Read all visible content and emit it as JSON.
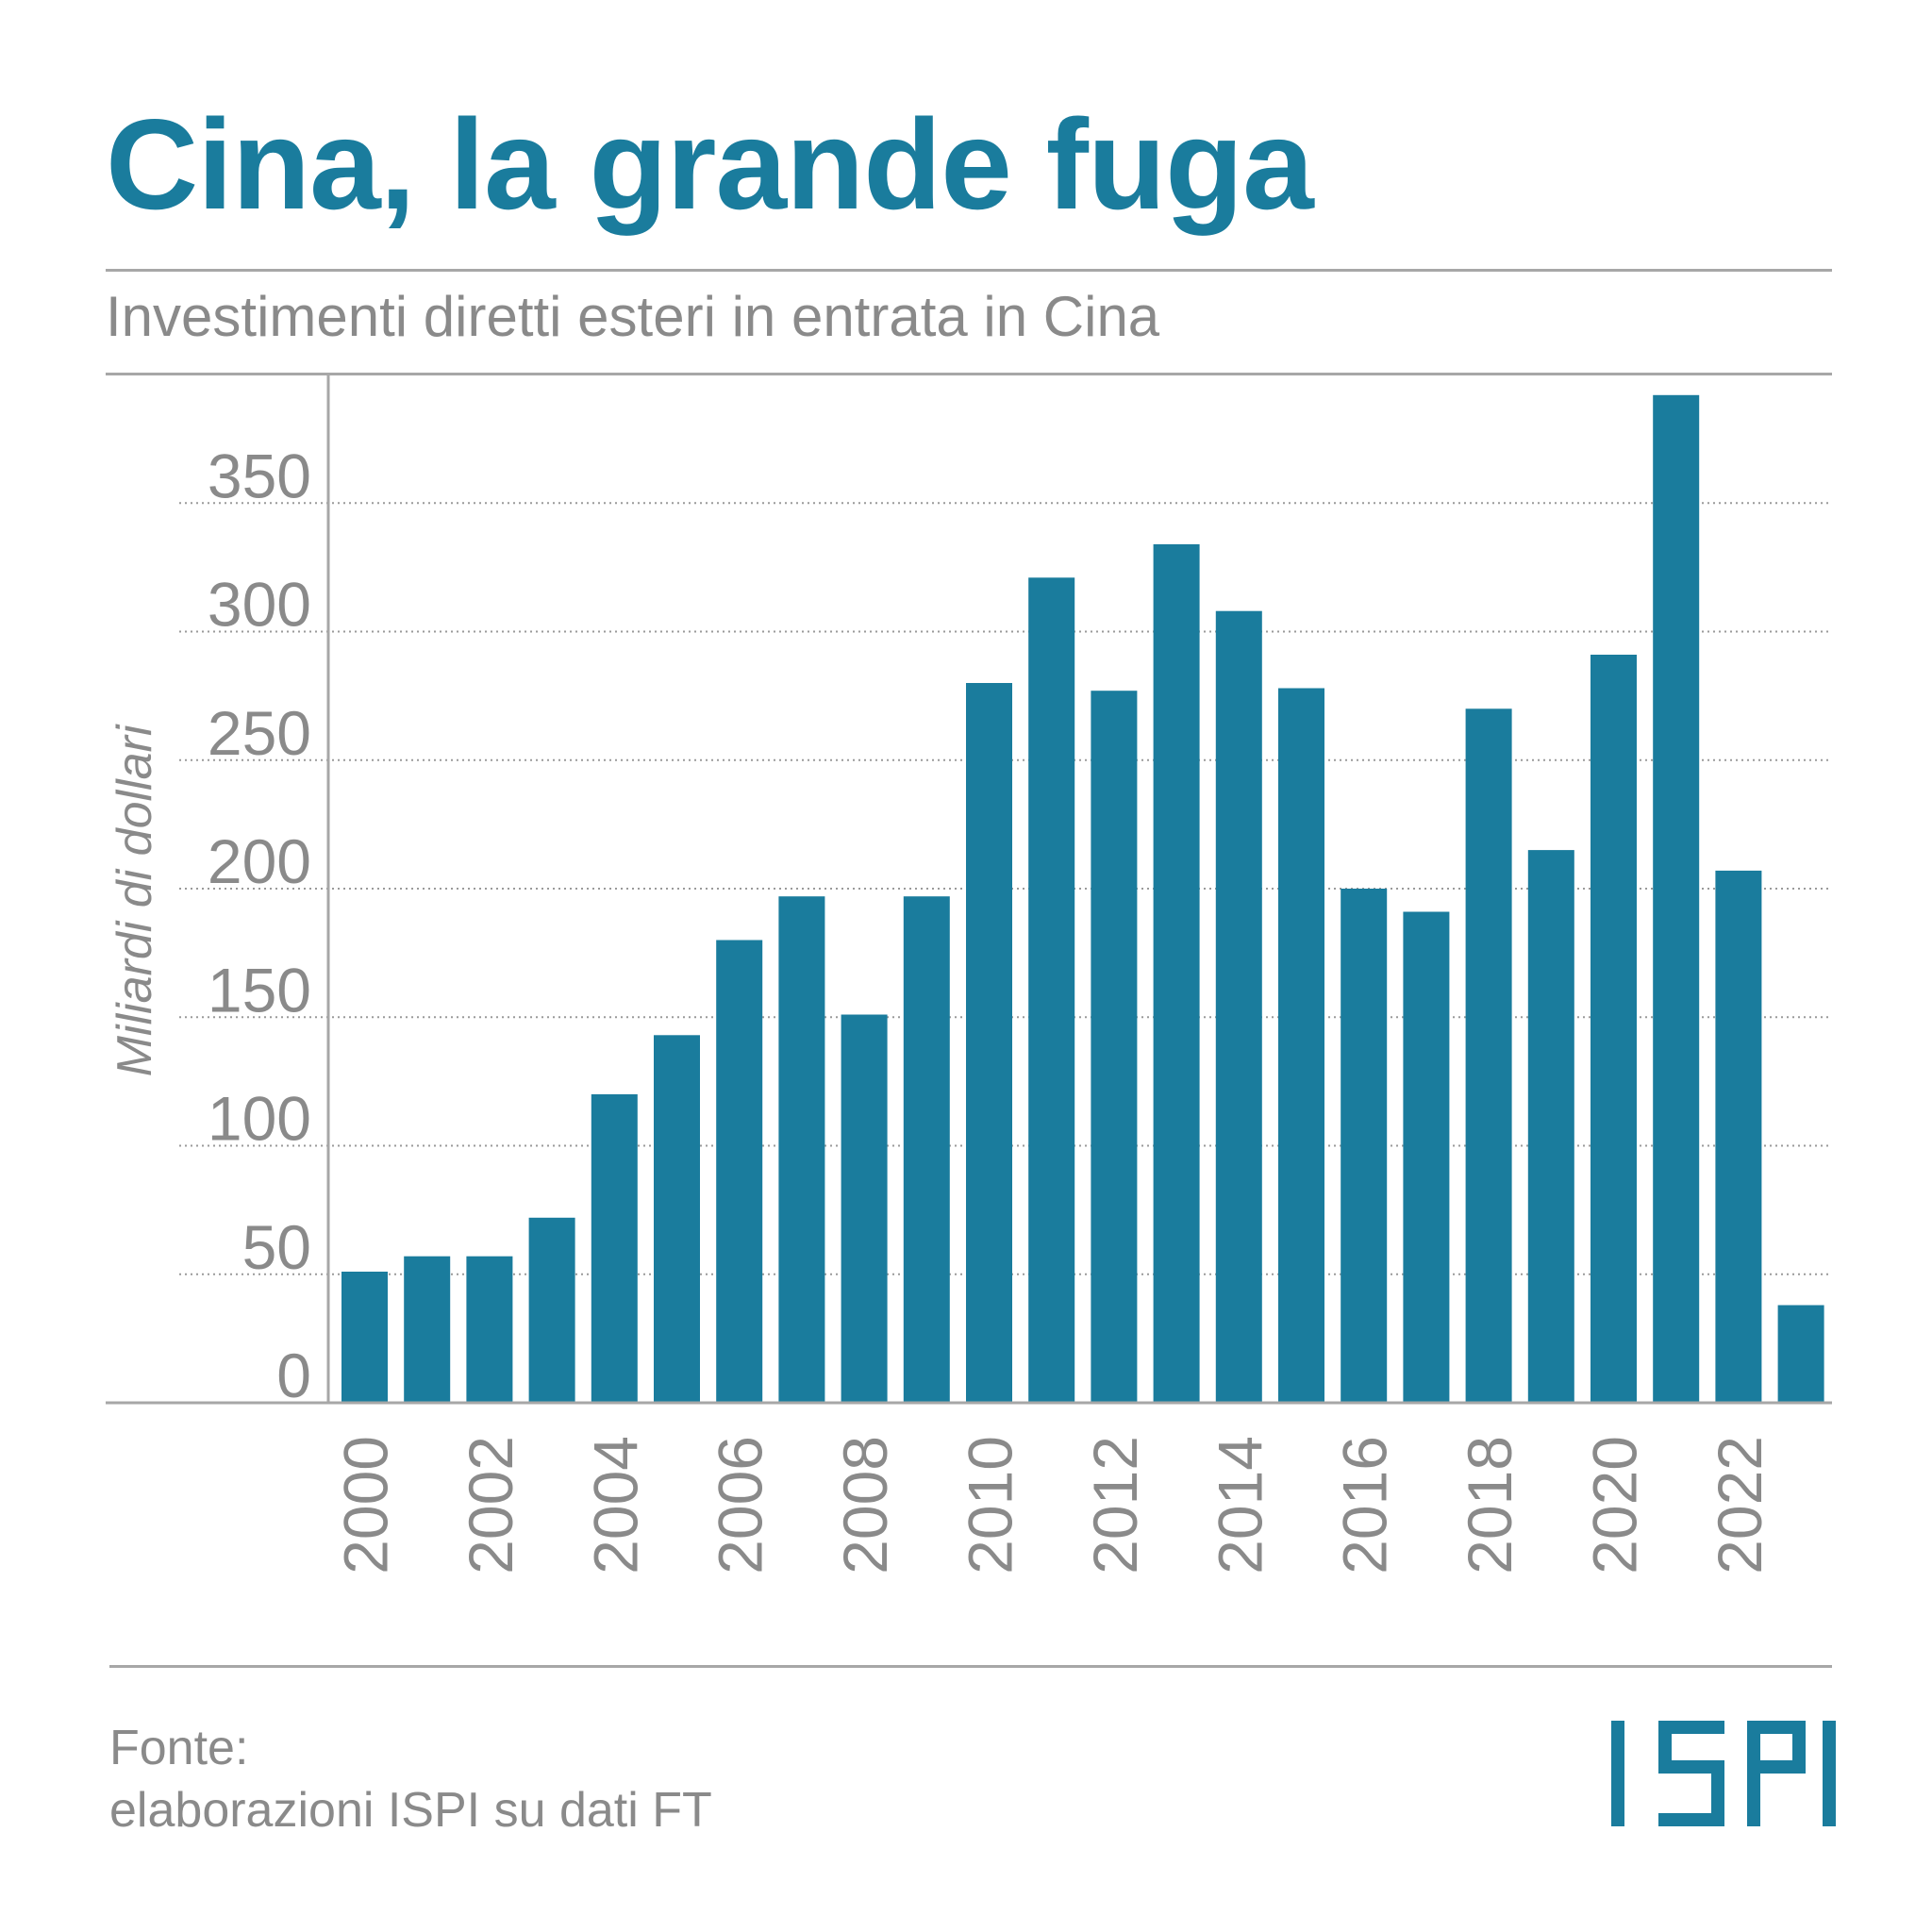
{
  "header": {
    "title": "Cina, la grande fuga",
    "subtitle": "Investimenti diretti esteri in entrata in Cina"
  },
  "footer": {
    "source_label": "Fonte:",
    "source_text": "elaborazioni ISPI su dati FT"
  },
  "brand": {
    "logo": "ISPI"
  },
  "colors": {
    "accent": "#1a7c9d",
    "text_gray": "#8a8a8a",
    "rule_gray": "#a7a7a7"
  },
  "chart_data": {
    "type": "bar",
    "title": "Investimenti diretti esteri in entrata in Cina",
    "xlabel": "",
    "ylabel": "Miliardi di dollari",
    "ylim": [
      0,
      400
    ],
    "yticks": [
      0,
      50,
      100,
      150,
      200,
      250,
      300,
      350
    ],
    "categories": [
      "2000",
      "2001",
      "2002",
      "2003",
      "2004",
      "2005",
      "2006",
      "2007",
      "2008",
      "2009",
      "2010",
      "2011",
      "2012",
      "2013",
      "2014",
      "2015",
      "2016",
      "2017",
      "2018",
      "2019",
      "2020",
      "2021",
      "2022",
      "2023"
    ],
    "tick_labels": [
      "2000",
      "2002",
      "2004",
      "2006",
      "2008",
      "2010",
      "2012",
      "2014",
      "2016",
      "2018",
      "2020",
      "2022"
    ],
    "values": [
      51,
      57,
      57,
      72,
      120,
      143,
      180,
      197,
      151,
      197,
      280,
      321,
      277,
      334,
      308,
      278,
      200,
      191,
      270,
      215,
      291,
      392,
      207,
      38
    ],
    "grid": true,
    "grid_style": "dotted",
    "legend": "none"
  }
}
